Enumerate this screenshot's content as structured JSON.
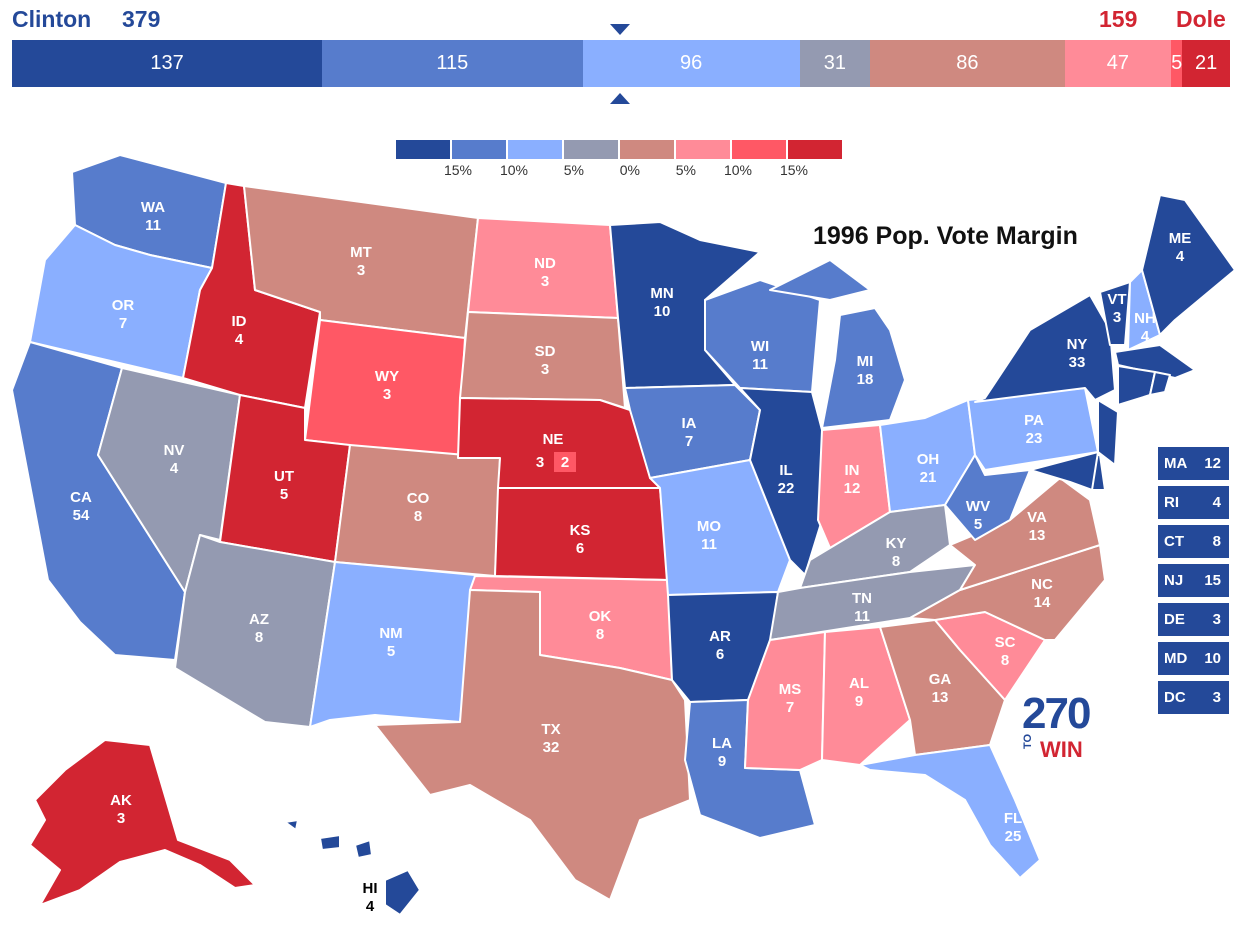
{
  "header": {
    "left_candidate": "Clinton",
    "left_ev": "379",
    "right_ev": "159",
    "right_candidate": "Dole"
  },
  "ev_bar": [
    {
      "value": "137",
      "color": "#244999",
      "share": 137
    },
    {
      "value": "115",
      "color": "#577CCC",
      "share": 115
    },
    {
      "value": "96",
      "color": "#8AAFFF",
      "share": 96
    },
    {
      "value": "31",
      "color": "#949AB1",
      "share": 31
    },
    {
      "value": "86",
      "color": "#CF8980",
      "share": 86
    },
    {
      "value": "47",
      "color": "#FF8B98",
      "share": 47
    },
    {
      "value": "5",
      "color": "#FF5865",
      "share": 5
    },
    {
      "value": "21",
      "color": "#D22532",
      "share": 21
    }
  ],
  "legend": {
    "swatches": [
      "#244999",
      "#577CCC",
      "#8AAFFF",
      "#949AB1",
      "#CF8980",
      "#FF8B98",
      "#FF5865",
      "#D22532"
    ],
    "labels": [
      "15%",
      "10%",
      "5%",
      "0%",
      "5%",
      "10%",
      "15%"
    ]
  },
  "title": "1996 Pop. Vote Margin",
  "colors": {
    "safe_d": "#244999",
    "likely_d": "#577CCC",
    "lean_d": "#8AAFFF",
    "tossup": "#949AB1",
    "lean_r": "#CF8980",
    "likely_r": "#FF8B98",
    "strong_r": "#FF5865",
    "safe_r": "#D22532"
  },
  "states": {
    "WA": {
      "abbr": "WA",
      "ev": "11"
    },
    "OR": {
      "abbr": "OR",
      "ev": "7"
    },
    "CA": {
      "abbr": "CA",
      "ev": "54"
    },
    "NV": {
      "abbr": "NV",
      "ev": "4"
    },
    "ID": {
      "abbr": "ID",
      "ev": "4"
    },
    "MT": {
      "abbr": "MT",
      "ev": "3"
    },
    "WY": {
      "abbr": "WY",
      "ev": "3"
    },
    "UT": {
      "abbr": "UT",
      "ev": "5"
    },
    "AZ": {
      "abbr": "AZ",
      "ev": "8"
    },
    "CO": {
      "abbr": "CO",
      "ev": "8"
    },
    "NM": {
      "abbr": "NM",
      "ev": "5"
    },
    "ND": {
      "abbr": "ND",
      "ev": "3"
    },
    "SD": {
      "abbr": "SD",
      "ev": "3"
    },
    "NE": {
      "abbr": "NE",
      "ev": "3",
      "ev2": "2"
    },
    "KS": {
      "abbr": "KS",
      "ev": "6"
    },
    "OK": {
      "abbr": "OK",
      "ev": "8"
    },
    "TX": {
      "abbr": "TX",
      "ev": "32"
    },
    "MN": {
      "abbr": "MN",
      "ev": "10"
    },
    "IA": {
      "abbr": "IA",
      "ev": "7"
    },
    "MO": {
      "abbr": "MO",
      "ev": "11"
    },
    "AR": {
      "abbr": "AR",
      "ev": "6"
    },
    "LA": {
      "abbr": "LA",
      "ev": "9"
    },
    "WI": {
      "abbr": "WI",
      "ev": "11"
    },
    "IL": {
      "abbr": "IL",
      "ev": "22"
    },
    "MI": {
      "abbr": "MI",
      "ev": "18"
    },
    "IN": {
      "abbr": "IN",
      "ev": "12"
    },
    "OH": {
      "abbr": "OH",
      "ev": "21"
    },
    "KY": {
      "abbr": "KY",
      "ev": "8"
    },
    "TN": {
      "abbr": "TN",
      "ev": "11"
    },
    "MS": {
      "abbr": "MS",
      "ev": "7"
    },
    "AL": {
      "abbr": "AL",
      "ev": "9"
    },
    "GA": {
      "abbr": "GA",
      "ev": "13"
    },
    "FL": {
      "abbr": "FL",
      "ev": "25"
    },
    "SC": {
      "abbr": "SC",
      "ev": "8"
    },
    "NC": {
      "abbr": "NC",
      "ev": "14"
    },
    "VA": {
      "abbr": "VA",
      "ev": "13"
    },
    "WV": {
      "abbr": "WV",
      "ev": "5"
    },
    "PA": {
      "abbr": "PA",
      "ev": "23"
    },
    "NY": {
      "abbr": "NY",
      "ev": "33"
    },
    "VT": {
      "abbr": "VT",
      "ev": "3"
    },
    "NH": {
      "abbr": "NH",
      "ev": "4"
    },
    "ME": {
      "abbr": "ME",
      "ev": "4"
    },
    "AK": {
      "abbr": "AK",
      "ev": "3"
    },
    "HI": {
      "abbr": "HI",
      "ev": "4"
    }
  },
  "small_states": [
    {
      "abbr": "MA",
      "ev": "12"
    },
    {
      "abbr": "RI",
      "ev": "4"
    },
    {
      "abbr": "CT",
      "ev": "8"
    },
    {
      "abbr": "NJ",
      "ev": "15"
    },
    {
      "abbr": "DE",
      "ev": "3"
    },
    {
      "abbr": "MD",
      "ev": "10"
    },
    {
      "abbr": "DC",
      "ev": "3"
    }
  ],
  "logo": {
    "number": "270",
    "to": "TO",
    "win": "WIN"
  }
}
